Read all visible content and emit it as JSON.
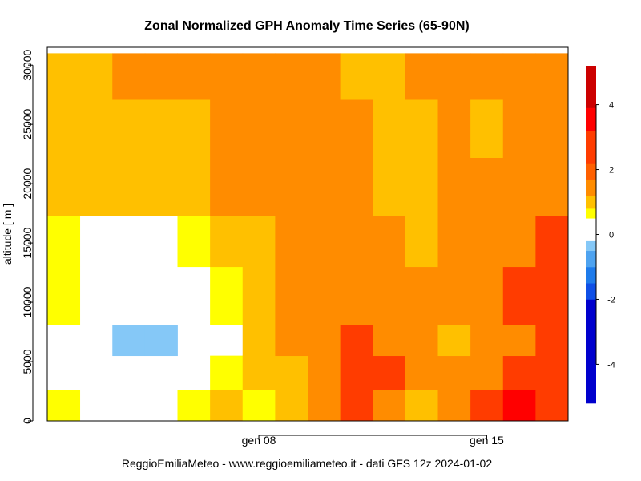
{
  "chart_data": {
    "type": "heatmap",
    "title": "Zonal Normalized GPH Anomaly Time Series (65-90N)",
    "ylabel": "altitude [ m ]",
    "footer": "ReggioEmiliaMeteo - www.reggioemiliameteo.it - dati GFS 12z 2024-01-02",
    "x_tick_labels": [
      "gen 08",
      "gen 15"
    ],
    "x_tick_positions": [
      6.5,
      13.5
    ],
    "n_columns": 16,
    "y_tick_labels": [
      "0",
      "5000",
      "10000",
      "15000",
      "20000",
      "25000",
      "30000"
    ],
    "y_tick_values": [
      0,
      5000,
      10000,
      15000,
      20000,
      25000,
      30000
    ],
    "ylim": [
      0,
      31500
    ],
    "row_edges": [
      0,
      2600,
      5500,
      8100,
      13000,
      17300,
      22200,
      27100,
      31000
    ],
    "values": [
      [
        0.5,
        null,
        null,
        null,
        0.5,
        1.0,
        0.5,
        1.0,
        1.5,
        2.5,
        1.5,
        1.0,
        1.5,
        2.5,
        3.5,
        2.5
      ],
      [
        null,
        null,
        null,
        null,
        null,
        0.5,
        1.0,
        1.0,
        1.5,
        2.5,
        2.5,
        1.5,
        1.5,
        1.5,
        2.5,
        2.5
      ],
      [
        null,
        null,
        -0.5,
        -0.5,
        null,
        null,
        1.0,
        1.5,
        1.5,
        2.5,
        1.5,
        1.5,
        1.0,
        1.5,
        1.5,
        2.5
      ],
      [
        0.5,
        null,
        null,
        null,
        null,
        0.5,
        1.0,
        1.5,
        1.5,
        1.5,
        1.5,
        1.5,
        1.5,
        1.5,
        2.5,
        2.5
      ],
      [
        0.5,
        null,
        null,
        null,
        0.5,
        1.0,
        1.0,
        1.5,
        1.5,
        1.5,
        1.5,
        1.0,
        1.5,
        1.5,
        1.5,
        2.5
      ],
      [
        1.0,
        1.0,
        1.0,
        1.0,
        1.0,
        1.5,
        1.5,
        1.5,
        1.5,
        1.5,
        1.0,
        1.0,
        1.5,
        1.5,
        1.5,
        1.5
      ],
      [
        1.0,
        1.0,
        1.0,
        1.0,
        1.0,
        1.5,
        1.5,
        1.5,
        1.5,
        1.5,
        1.0,
        1.0,
        1.5,
        1.0,
        1.5,
        1.5
      ],
      [
        1.0,
        1.0,
        1.5,
        1.5,
        1.5,
        1.5,
        1.5,
        1.5,
        1.5,
        1.0,
        1.0,
        1.5,
        1.5,
        1.5,
        1.5,
        1.5
      ]
    ],
    "legend": {
      "tick_labels": [
        "-4",
        "-2",
        "0",
        "2",
        "4"
      ],
      "tick_values": [
        -4,
        -2,
        0,
        2,
        4
      ],
      "range": [
        -5.2,
        5.2
      ],
      "bands": [
        {
          "from": -5.2,
          "to": -2.0,
          "color": "#0000CD"
        },
        {
          "from": -2.0,
          "to": -1.5,
          "color": "#0F4FE6"
        },
        {
          "from": -1.5,
          "to": -1.0,
          "color": "#1E7BEB"
        },
        {
          "from": -1.0,
          "to": -0.5,
          "color": "#4EA3F0"
        },
        {
          "from": -0.5,
          "to": -0.2,
          "color": "#85C8F7"
        },
        {
          "from": -0.2,
          "to": 0.5,
          "color": "#FFFFFF"
        },
        {
          "from": 0.5,
          "to": 0.8,
          "color": "#FFFF00"
        },
        {
          "from": 0.8,
          "to": 1.2,
          "color": "#FFC000"
        },
        {
          "from": 1.2,
          "to": 1.7,
          "color": "#FF8C00"
        },
        {
          "from": 1.7,
          "to": 2.2,
          "color": "#FF6000"
        },
        {
          "from": 2.2,
          "to": 3.2,
          "color": "#FF3C00"
        },
        {
          "from": 3.2,
          "to": 3.9,
          "color": "#FF0000"
        },
        {
          "from": 3.9,
          "to": 5.2,
          "color": "#CC0000"
        }
      ]
    }
  }
}
